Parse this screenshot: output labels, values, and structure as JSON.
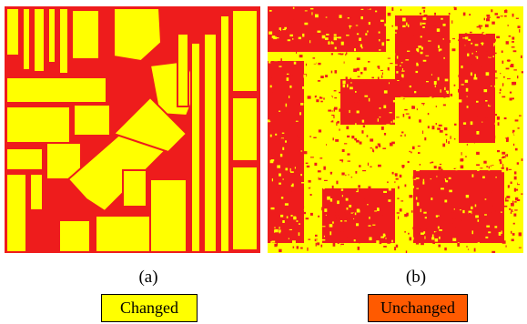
{
  "captions": {
    "a": "(a)",
    "b": "(b)"
  },
  "legend": [
    {
      "label": "Changed",
      "color": "#ffff00"
    },
    {
      "label": "Unchanged",
      "color": "#ff5a00"
    }
  ],
  "map_colors": {
    "red": "#ee1c1c",
    "yellow": "#ffff00"
  }
}
